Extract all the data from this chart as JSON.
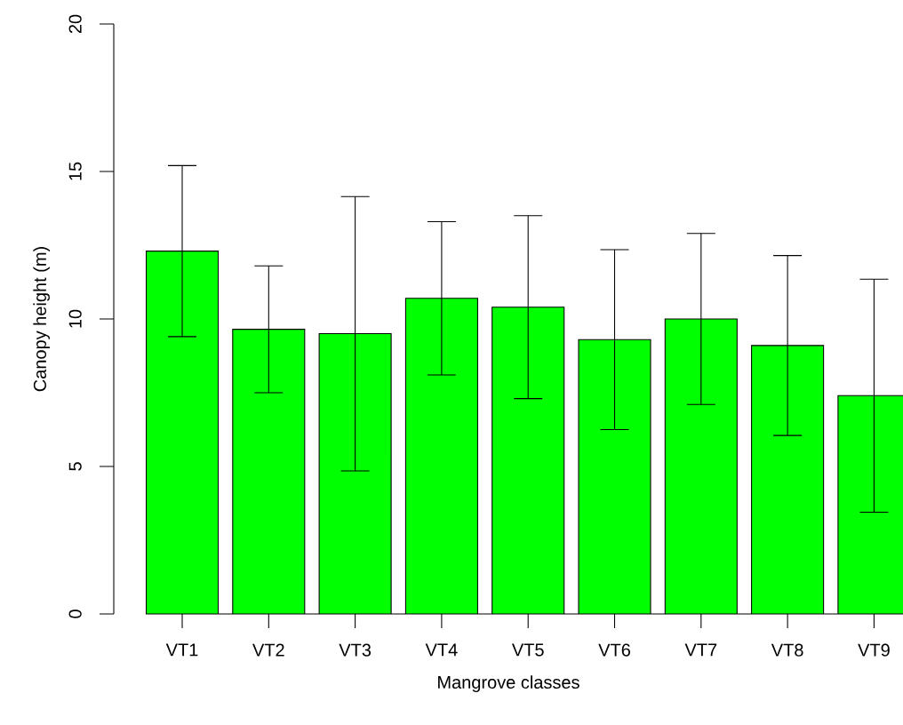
{
  "chart_data": {
    "type": "bar",
    "xlabel": "Mangrove classes",
    "ylabel": "Canopy height  (m)",
    "categories": [
      "VT1",
      "VT2",
      "VT3",
      "VT4",
      "VT5",
      "VT6",
      "VT7",
      "VT8",
      "VT9"
    ],
    "values": [
      12.3,
      9.65,
      9.5,
      10.7,
      10.4,
      9.3,
      10.0,
      9.1,
      7.4
    ],
    "errors": [
      2.9,
      2.15,
      4.65,
      2.6,
      3.1,
      3.05,
      2.9,
      3.05,
      3.95
    ],
    "color": "#00ff00",
    "ylim": [
      0,
      20
    ],
    "yticks": [
      0,
      5,
      10,
      15,
      20
    ],
    "grid": false
  }
}
